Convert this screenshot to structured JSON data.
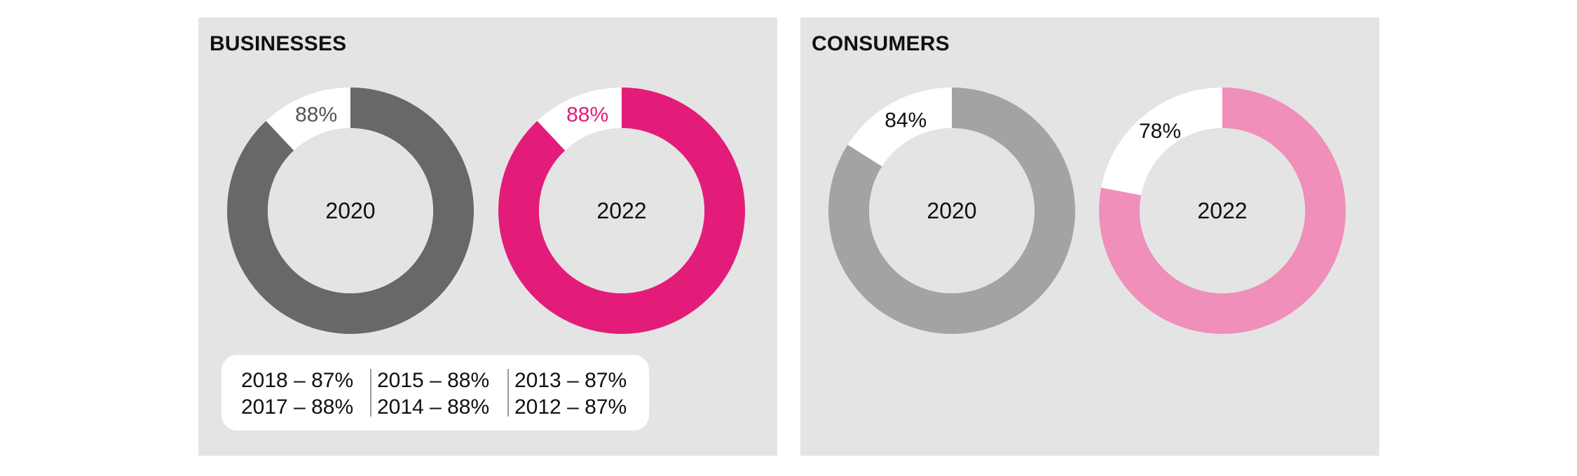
{
  "chart_data": [
    {
      "type": "pie",
      "title": "BUSINESSES",
      "charts": [
        {
          "center_label": "2020",
          "value_label": "88%",
          "value": 88,
          "color": "#676867",
          "label_color": "#555555"
        },
        {
          "center_label": "2022",
          "value_label": "88%",
          "value": 88,
          "color": "#e31c79",
          "label_color": "#e31c79"
        }
      ],
      "history": [
        [
          "2018 – 87%",
          "2017 – 88%"
        ],
        [
          "2015 – 88%",
          "2014 – 88%"
        ],
        [
          "2013 – 87%",
          "2012 – 87%"
        ]
      ]
    },
    {
      "type": "pie",
      "title": "CONSUMERS",
      "charts": [
        {
          "center_label": "2020",
          "value_label": "84%",
          "value": 84,
          "color": "#a3a3a3",
          "label_color": "#111111"
        },
        {
          "center_label": "2022",
          "value_label": "78%",
          "value": 78,
          "color": "#ef8fba",
          "label_color": "#111111"
        }
      ]
    }
  ],
  "colors": {
    "panel_background": "#e4e4e4",
    "remainder": "#ffffff",
    "text": "#111111"
  }
}
